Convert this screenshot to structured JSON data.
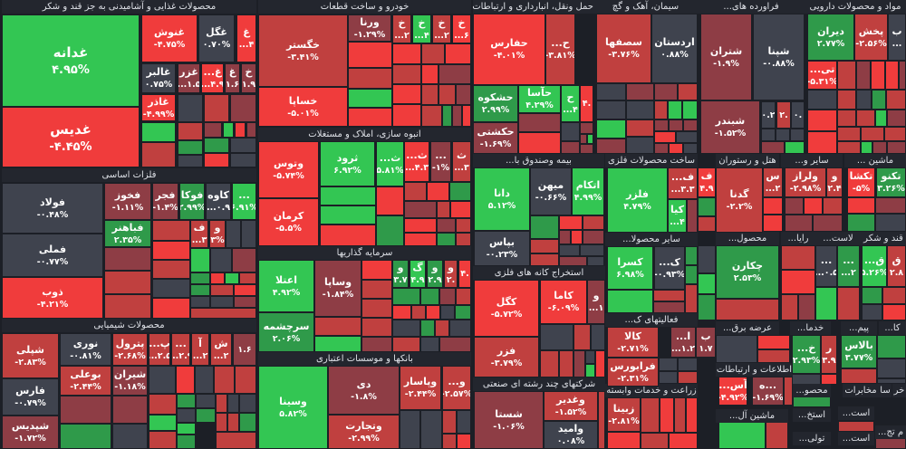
{
  "colors": {
    "red": "#f03c3c",
    "dark_red": "#c0403f",
    "maroon": "#8e3d45",
    "gray": "#3f434e",
    "green": "#33c653",
    "dark_green": "#2f9a4a"
  },
  "sectors": [
    {
      "title": "محصولات غذایی و آشامیدنی به جز قند و شکر",
      "tiles": [
        {
          "sym": "غدانه",
          "pct": "۴.۹۵%",
          "color": "#33c653"
        },
        {
          "sym": "غدیس",
          "pct": "-۴.۴۵%",
          "color": "#f03c3c"
        },
        {
          "sym": "غنوش",
          "pct": "-۴.۷۵%",
          "color": "#f03c3c"
        },
        {
          "sym": "غگل",
          "pct": "۰.۷۰%",
          "color": "#3f434e"
        },
        {
          "sym": "غ",
          "pct": "...۴",
          "color": "#f03c3c"
        },
        {
          "sym": "غالبر",
          "pct": "۰.۷۵%",
          "color": "#3f434e"
        },
        {
          "sym": "غزر",
          "pct": "...۱.۵",
          "color": "#8e3d45"
        },
        {
          "sym": "غ...",
          "pct": "...۴.۹",
          "color": "#f03c3c"
        },
        {
          "sym": "غ",
          "pct": "۱.۶",
          "color": "#8e3d45"
        },
        {
          "sym": "خ",
          "pct": "۱.۹",
          "color": "#8e3d45"
        },
        {
          "sym": "غاذر",
          "pct": "-۴.۹۹%",
          "color": "#f03c3c"
        }
      ]
    },
    {
      "title": "فلزات اساسی",
      "tiles": [
        {
          "sym": "فولاد",
          "pct": "-۰.۴۸%",
          "color": "#3f434e"
        },
        {
          "sym": "فملی",
          "pct": "-۰.۷۷%",
          "color": "#3f434e"
        },
        {
          "sym": "ذوب",
          "pct": "-۴.۲۱%",
          "color": "#f03c3c"
        },
        {
          "sym": "فخوز",
          "pct": "-۱.۱۱%",
          "color": "#8e3d45"
        },
        {
          "sym": "فجر",
          "pct": "-۱.۴%",
          "color": "#8e3d45"
        },
        {
          "sym": "فوکا",
          "pct": "۲.۹۹%",
          "color": "#2f9a4a"
        },
        {
          "sym": "کاوه",
          "pct": "...۰.۹",
          "color": "#3f434e"
        },
        {
          "sym": "...",
          "pct": "۶.۹۱%",
          "color": "#33c653"
        },
        {
          "sym": "فباهنر",
          "pct": "۲.۳۵%",
          "color": "#2f9a4a"
        },
        {
          "sym": "ف",
          "pct": "...۳",
          "color": "#c0403f"
        },
        {
          "sym": "و",
          "pct": "۳%",
          "color": "#c0403f"
        }
      ]
    },
    {
      "title": "محصولات شیمیایی",
      "tiles": [
        {
          "sym": "شپلی",
          "pct": "-۲.۸۳%",
          "color": "#c0403f"
        },
        {
          "sym": "فارس",
          "pct": "-۰.۷۹%",
          "color": "#3f434e"
        },
        {
          "sym": "شپدیس",
          "pct": "-۱.۷۲%",
          "color": "#8e3d45"
        },
        {
          "sym": "نوری",
          "pct": "-۰.۸۱%",
          "color": "#3f434e"
        },
        {
          "sym": "پترول",
          "pct": "-۲.۶۸%",
          "color": "#c0403f"
        },
        {
          "sym": "پ...",
          "pct": "...۲.۵",
          "color": "#c0403f"
        },
        {
          "sym": "...",
          "pct": "...۲.۹",
          "color": "#c0403f"
        },
        {
          "sym": "آ",
          "pct": "...۲",
          "color": "#c0403f"
        },
        {
          "sym": "ش",
          "pct": "...۲",
          "color": "#c0403f"
        },
        {
          "sym": "",
          "pct": "۱.۶",
          "color": "#8e3d45"
        },
        {
          "sym": "بوعلی",
          "pct": "-۲.۴۴%",
          "color": "#c0403f"
        },
        {
          "sym": "شیران",
          "pct": "-۱.۱۸%",
          "color": "#8e3d45"
        }
      ]
    },
    {
      "title": "خودرو و ساخت قطعات",
      "tiles": [
        {
          "sym": "خگستر",
          "pct": "-۳.۴۱%",
          "color": "#c0403f"
        },
        {
          "sym": "خساپا",
          "pct": "-۵.۰۱%",
          "color": "#f03c3c"
        },
        {
          "sym": "ورنا",
          "pct": "-۱.۲۹%",
          "color": "#8e3d45"
        },
        {
          "sym": "خ",
          "pct": "...۲",
          "color": "#c0403f"
        },
        {
          "sym": "خ",
          "pct": "...۴",
          "color": "#33c653"
        },
        {
          "sym": "خ",
          "pct": "...۲",
          "color": "#c0403f"
        },
        {
          "sym": "خ",
          "pct": "...۶",
          "color": "#f03c3c"
        }
      ]
    },
    {
      "title": "انبوه سازی، املاک و مستغلات",
      "tiles": [
        {
          "sym": "وتوس",
          "pct": "-۵.۷۴%",
          "color": "#f03c3c"
        },
        {
          "sym": "کرمان",
          "pct": "-۵.۵%",
          "color": "#f03c3c"
        },
        {
          "sym": "ثرود",
          "pct": "۶.۹۲%",
          "color": "#33c653"
        },
        {
          "sym": "ث...",
          "pct": "۵.۸۱%",
          "color": "#33c653"
        },
        {
          "sym": "ث...",
          "pct": "...۴.۳",
          "color": "#f03c3c"
        },
        {
          "sym": "...",
          "pct": "-۱%",
          "color": "#8e3d45"
        },
        {
          "sym": "ث",
          "pct": "...۳",
          "color": "#c0403f"
        }
      ]
    },
    {
      "title": "سرمایه گذاریها",
      "tiles": [
        {
          "sym": "اعتلا",
          "pct": "۴.۹۲%",
          "color": "#33c653"
        },
        {
          "sym": "سرچشمه",
          "pct": "۲.۰۶%",
          "color": "#2f9a4a"
        },
        {
          "sym": "وساپا",
          "pct": "-۱.۸۴%",
          "color": "#8e3d45"
        },
        {
          "sym": "و",
          "pct": "۳.۷",
          "color": "#2f9a4a"
        },
        {
          "sym": "گ",
          "pct": "۴.۹",
          "color": "#33c653"
        },
        {
          "sym": "و",
          "pct": "۲.۹",
          "color": "#2f9a4a"
        },
        {
          "sym": "و",
          "pct": "۲.",
          "color": "#c0403f"
        },
        {
          "sym": "",
          "pct": "۴.",
          "color": "#f03c3c"
        }
      ]
    },
    {
      "title": "بانکها و موسسات اعتباری",
      "tiles": [
        {
          "sym": "وسینا",
          "pct": "۵.۸۲%",
          "color": "#33c653"
        },
        {
          "sym": "دی",
          "pct": "-۱.۸%",
          "color": "#8e3d45"
        },
        {
          "sym": "وتجارت",
          "pct": "-۲.۹۹%",
          "color": "#c0403f"
        },
        {
          "sym": "وپاسار",
          "pct": "-۲.۴۴%",
          "color": "#c0403f"
        },
        {
          "sym": "و...",
          "pct": "-۲.۵۷%",
          "color": "#c0403f"
        }
      ]
    },
    {
      "title": "حمل ونقل، انبارداری و ارتباطات",
      "tiles": [
        {
          "sym": "حفارس",
          "pct": "-۴.۰۱%",
          "color": "#f03c3c"
        },
        {
          "sym": "ح...",
          "pct": "-۳.۸۱%",
          "color": "#c0403f"
        },
        {
          "sym": "حشکوه",
          "pct": "۲.۹۹%",
          "color": "#2f9a4a"
        },
        {
          "sym": "حآسا",
          "pct": "۴.۲۹%",
          "color": "#33c653"
        },
        {
          "sym": "ح",
          "pct": "...۴",
          "color": "#33c653"
        },
        {
          "sym": "",
          "pct": "۴.",
          "color": "#f03c3c"
        },
        {
          "sym": "حکشتی",
          "pct": "-۱.۶۹%",
          "color": "#8e3d45"
        }
      ]
    },
    {
      "title": "سیمان، آهک و گچ",
      "tiles": [
        {
          "sym": "سصفها",
          "pct": "-۳.۷۶%",
          "color": "#c0403f"
        },
        {
          "sym": "اردستان",
          "pct": "۰.۸۸%",
          "color": "#3f434e"
        }
      ]
    },
    {
      "title": "فراورده های...",
      "tiles": [
        {
          "sym": "شتران",
          "pct": "-۱.۹%",
          "color": "#8e3d45"
        },
        {
          "sym": "شپنا",
          "pct": "-۰.۸۸%",
          "color": "#3f434e"
        },
        {
          "sym": "شبندر",
          "pct": "-۱.۵۲%",
          "color": "#8e3d45"
        },
        {
          "sym": "",
          "pct": "۰.۲",
          "color": "#3f434e"
        },
        {
          "sym": "",
          "pct": "۲.",
          "color": "#c0403f"
        },
        {
          "sym": "",
          "pct": "۰.",
          "color": "#3f434e"
        }
      ]
    },
    {
      "title": "مواد و محصولات دارویی",
      "tiles": [
        {
          "sym": "دیران",
          "pct": "۲.۷۷%",
          "color": "#2f9a4a"
        },
        {
          "sym": "پخش",
          "pct": "-۲.۵۶%",
          "color": "#c0403f"
        },
        {
          "sym": "ب",
          "pct": "...",
          "color": "#3f434e"
        },
        {
          "sym": "تی...",
          "pct": "-۵.۳۱%",
          "color": "#f03c3c"
        }
      ]
    },
    {
      "title": "بیمه وصندوق با...",
      "tiles": [
        {
          "sym": "دانا",
          "pct": "۵.۱۲%",
          "color": "#33c653"
        },
        {
          "sym": "میهن",
          "pct": "-۰.۶۶%",
          "color": "#3f434e"
        },
        {
          "sym": "اتکام",
          "pct": "۴.۹۹%",
          "color": "#33c653"
        },
        {
          "sym": "بپاس",
          "pct": "-۰.۲۳%",
          "color": "#3f434e"
        }
      ]
    },
    {
      "title": "ساخت محصولات فلزی",
      "tiles": [
        {
          "sym": "فلزر",
          "pct": "۴.۷۹%",
          "color": "#33c653"
        },
        {
          "sym": "ف...",
          "pct": "...۳.۳",
          "color": "#c0403f"
        },
        {
          "sym": "کیا",
          "pct": "...۴",
          "color": "#33c653"
        }
      ]
    },
    {
      "title": "سایر محصولا...",
      "tiles": [
        {
          "sym": "کسرا",
          "pct": "۶.۹۸%",
          "color": "#33c653"
        },
        {
          "sym": "ک...",
          "pct": "-۰.۹۳%",
          "color": "#3f434e"
        }
      ]
    },
    {
      "title": "استخراج کانه های فلزی",
      "tiles": [
        {
          "sym": "کگل",
          "pct": "-۵.۷۲%",
          "color": "#f03c3c"
        },
        {
          "sym": "کاما",
          "pct": "-۶.۰۹%",
          "color": "#f03c3c"
        },
        {
          "sym": "و",
          "pct": "...۱",
          "color": "#8e3d45"
        },
        {
          "sym": "فزر",
          "pct": "-۳.۷۹%",
          "color": "#c0403f"
        }
      ]
    },
    {
      "title": "شرکتهای چند رشته ای صنعتی",
      "tiles": [
        {
          "sym": "شستا",
          "pct": "-۱.۰۶%",
          "color": "#8e3d45"
        },
        {
          "sym": "وغدیر",
          "pct": "-۱.۵۲%",
          "color": "#c0403f"
        },
        {
          "sym": "وامید",
          "pct": "۰.۰۸%",
          "color": "#3f434e"
        }
      ]
    },
    {
      "title": "فعالیتهای ک...",
      "tiles": [
        {
          "sym": "کالا",
          "pct": "-۲.۷۱%",
          "color": "#c0403f"
        },
        {
          "sym": "فرابورس",
          "pct": "-۲.۳۱%",
          "color": "#c0403f"
        },
        {
          "sym": "ا...",
          "pct": "...۱.۲",
          "color": "#8e3d45"
        },
        {
          "sym": "ب",
          "pct": "۱.۷",
          "color": "#8e3d45"
        }
      ]
    },
    {
      "title": "زراعت و خدمات وابسته",
      "tiles": [
        {
          "sym": "زبینا",
          "pct": "-۲.۸۱%",
          "color": "#c0403f"
        }
      ]
    },
    {
      "title": "هتل و رستوران",
      "tiles": [
        {
          "sym": "گدنا",
          "pct": "-۲.۲%",
          "color": "#c0403f"
        },
        {
          "sym": "س",
          "pct": "...۲",
          "color": "#c0403f"
        },
        {
          "sym": "ف",
          "pct": "۴.۹",
          "color": "#f03c3c"
        }
      ]
    },
    {
      "title": "سایر و...",
      "tiles": [
        {
          "sym": "ولراز",
          "pct": "-۲.۹۸%",
          "color": "#c0403f"
        },
        {
          "sym": "و",
          "pct": "۲.۴",
          "color": "#c0403f"
        }
      ]
    },
    {
      "title": "ماشین ...",
      "tiles": [
        {
          "sym": "تکشا",
          "pct": "-۵%",
          "color": "#f03c3c"
        },
        {
          "sym": "تکنو",
          "pct": "۳.۲۶%",
          "color": "#2f9a4a"
        }
      ]
    },
    {
      "title": "محصول...",
      "tiles": [
        {
          "sym": "چکارن",
          "pct": "۲.۵۳%",
          "color": "#2f9a4a"
        }
      ]
    },
    {
      "title": "رایا...",
      "tiles": []
    },
    {
      "title": "لاست...",
      "tiles": [
        {
          "sym": "...",
          "pct": "...۰.۵",
          "color": "#3f434e"
        },
        {
          "sym": "...",
          "pct": "...۲",
          "color": "#2f9a4a"
        }
      ]
    },
    {
      "title": "قند و شکر",
      "tiles": [
        {
          "sym": "ق...",
          "pct": "۵.۲۶%",
          "color": "#33c653"
        },
        {
          "sym": "ق",
          "pct": "۲.۸",
          "color": "#c0403f"
        }
      ]
    },
    {
      "title": "عرضه برق...",
      "tiles": []
    },
    {
      "title": "خدما...",
      "tiles": [
        {
          "sym": "خ...",
          "pct": "۲.۹۳%",
          "color": "#2f9a4a"
        },
        {
          "sym": "ر",
          "pct": "۳.۹",
          "color": "#c0403f"
        }
      ]
    },
    {
      "title": "پیم...",
      "tiles": [
        {
          "sym": "بالاس",
          "pct": "۳.۷۷%",
          "color": "#2f9a4a"
        }
      ]
    },
    {
      "title": "کا...",
      "tiles": []
    },
    {
      "title": "اطلاعات و ارتباطات",
      "tiles": [
        {
          "sym": "آس...",
          "pct": "-۴.۹۲%",
          "color": "#f03c3c"
        },
        {
          "sym": "...ه",
          "pct": "-۱.۶۹%",
          "color": "#8e3d45"
        }
      ]
    },
    {
      "title": "محصو...",
      "tiles": []
    },
    {
      "title": "مخابرات",
      "tiles": []
    },
    {
      "title": "سا",
      "tiles": []
    },
    {
      "title": "خر",
      "tiles": []
    },
    {
      "title": "ماشین آل...",
      "tiles": []
    },
    {
      "title": "استخ...",
      "tiles": []
    },
    {
      "title": "است...",
      "tiles": []
    },
    {
      "title": "تولی...",
      "tiles": []
    },
    {
      "title": "است...",
      "tiles": []
    },
    {
      "title": "م تج...",
      "tiles": []
    }
  ]
}
